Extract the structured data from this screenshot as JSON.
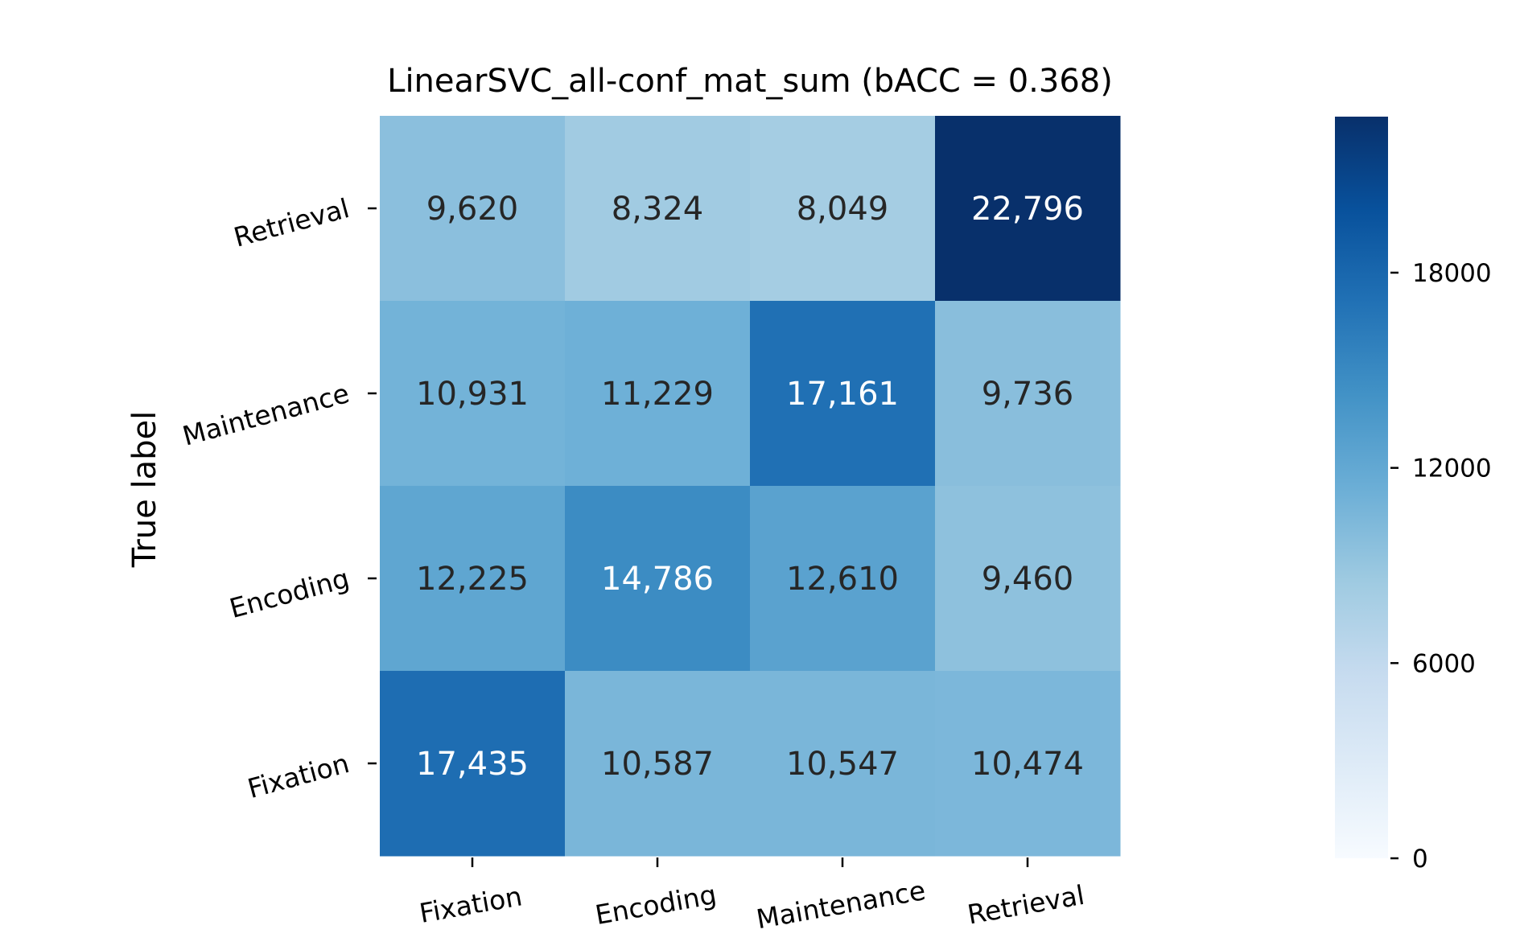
{
  "chart_data": {
    "type": "heatmap",
    "title": "LinearSVC_all-conf_mat_sum (bACC = 0.368)",
    "ylabel": "True label",
    "xlabel": "",
    "x_categories": [
      "Fixation",
      "Encoding",
      "Maintenance",
      "Retrieval"
    ],
    "y_categories": [
      "Retrieval",
      "Maintenance",
      "Encoding",
      "Fixation"
    ],
    "values": [
      [
        9620,
        8324,
        8049,
        22796
      ],
      [
        10931,
        11229,
        17161,
        9736
      ],
      [
        12225,
        14786,
        12610,
        9460
      ],
      [
        17435,
        10587,
        10547,
        10474
      ]
    ],
    "cell_labels": [
      [
        "9,620",
        "8,324",
        "8,049",
        "22,796"
      ],
      [
        "10,931",
        "11,229",
        "17,161",
        "9,736"
      ],
      [
        "12,225",
        "14,786",
        "12,610",
        "9,460"
      ],
      [
        "17,435",
        "10,587",
        "10,547",
        "10,474"
      ]
    ],
    "colorbar": {
      "colormap": "Blues",
      "vmin": 0,
      "vmax": 22796,
      "ticks": [
        0,
        6000,
        12000,
        18000
      ],
      "tick_labels": [
        "0",
        "6000",
        "12000",
        "18000"
      ]
    },
    "grid": false
  }
}
